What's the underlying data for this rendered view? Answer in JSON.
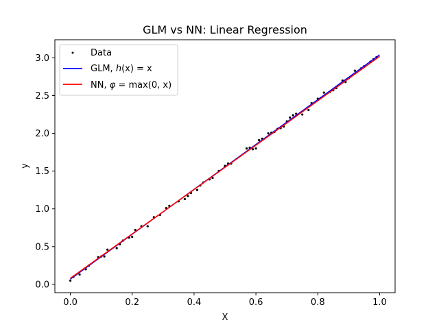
{
  "chart_data": {
    "type": "scatter",
    "title": "GLM vs NN: Linear Regression",
    "xlabel": "X",
    "ylabel": "y",
    "xlim": [
      -0.05,
      1.05
    ],
    "ylim": [
      -0.11,
      3.24
    ],
    "xticks": [
      0.0,
      0.2,
      0.4,
      0.6,
      0.8,
      1.0
    ],
    "xtick_labels": [
      "0.0",
      "0.2",
      "0.4",
      "0.6",
      "0.8",
      "1.0"
    ],
    "yticks": [
      0.0,
      0.5,
      1.0,
      1.5,
      2.0,
      2.5,
      3.0
    ],
    "ytick_labels": [
      "0.0",
      "0.5",
      "1.0",
      "1.5",
      "2.0",
      "2.5",
      "3.0"
    ],
    "grid": false,
    "legend_position": "upper-left",
    "legend": [
      {
        "name": "Data",
        "marker": "dot",
        "color": "#000000"
      },
      {
        "name": "GLM, ",
        "math_func": "h",
        "math_rest": "(x) = x",
        "marker": "line",
        "color": "#0000ff"
      },
      {
        "name": "NN, ",
        "math_func": "φ",
        "math_rest": " = max(0, x)",
        "marker": "line",
        "color": "#ff0000"
      }
    ],
    "series": [
      {
        "name": "Data",
        "kind": "scatter",
        "color": "#000000",
        "points": [
          [
            0.0,
            0.05
          ],
          [
            0.01,
            0.1
          ],
          [
            0.03,
            0.13
          ],
          [
            0.05,
            0.2
          ],
          [
            0.06,
            0.25
          ],
          [
            0.09,
            0.36
          ],
          [
            0.1,
            0.37
          ],
          [
            0.11,
            0.37
          ],
          [
            0.12,
            0.46
          ],
          [
            0.15,
            0.48
          ],
          [
            0.16,
            0.53
          ],
          [
            0.17,
            0.58
          ],
          [
            0.19,
            0.62
          ],
          [
            0.2,
            0.63
          ],
          [
            0.21,
            0.72
          ],
          [
            0.23,
            0.77
          ],
          [
            0.25,
            0.77
          ],
          [
            0.27,
            0.89
          ],
          [
            0.29,
            0.92
          ],
          [
            0.31,
            1.01
          ],
          [
            0.32,
            1.04
          ],
          [
            0.35,
            1.1
          ],
          [
            0.37,
            1.13
          ],
          [
            0.38,
            1.17
          ],
          [
            0.39,
            1.21
          ],
          [
            0.41,
            1.25
          ],
          [
            0.42,
            1.31
          ],
          [
            0.43,
            1.35
          ],
          [
            0.45,
            1.39
          ],
          [
            0.46,
            1.41
          ],
          [
            0.48,
            1.5
          ],
          [
            0.5,
            1.57
          ],
          [
            0.51,
            1.6
          ],
          [
            0.52,
            1.6
          ],
          [
            0.57,
            1.8
          ],
          [
            0.58,
            1.81
          ],
          [
            0.59,
            1.79
          ],
          [
            0.6,
            1.8
          ],
          [
            0.61,
            1.91
          ],
          [
            0.62,
            1.93
          ],
          [
            0.64,
            2.0
          ],
          [
            0.65,
            2.01
          ],
          [
            0.66,
            2.02
          ],
          [
            0.67,
            2.06
          ],
          [
            0.68,
            2.07
          ],
          [
            0.69,
            2.09
          ],
          [
            0.7,
            2.16
          ],
          [
            0.71,
            2.21
          ],
          [
            0.72,
            2.24
          ],
          [
            0.73,
            2.26
          ],
          [
            0.75,
            2.25
          ],
          [
            0.77,
            2.31
          ],
          [
            0.78,
            2.4
          ],
          [
            0.8,
            2.46
          ],
          [
            0.81,
            2.47
          ],
          [
            0.82,
            2.54
          ],
          [
            0.84,
            2.55
          ],
          [
            0.85,
            2.57
          ],
          [
            0.86,
            2.6
          ],
          [
            0.88,
            2.7
          ],
          [
            0.89,
            2.68
          ],
          [
            0.9,
            2.73
          ],
          [
            0.92,
            2.83
          ],
          [
            0.94,
            2.86
          ],
          [
            0.95,
            2.89
          ],
          [
            0.97,
            2.95
          ],
          [
            0.98,
            2.98
          ],
          [
            0.99,
            3.01
          ]
        ]
      },
      {
        "name": "GLM, h(x) = x",
        "kind": "line",
        "color": "#0000ff",
        "x": [
          0.0,
          1.0
        ],
        "y": [
          0.07,
          3.04
        ]
      },
      {
        "name": "NN, φ = max(0, x)",
        "kind": "line",
        "color": "#ff0000",
        "x": [
          0.0,
          1.0
        ],
        "y": [
          0.08,
          3.02
        ]
      }
    ]
  }
}
